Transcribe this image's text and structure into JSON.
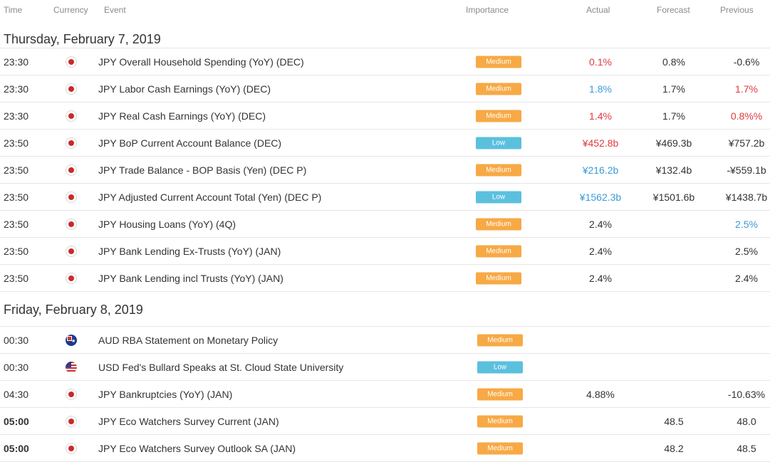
{
  "columns": {
    "time": "Time",
    "currency": "Currency",
    "event": "Event",
    "importance": "Importance",
    "actual": "Actual",
    "forecast": "Forecast",
    "previous": "Previous"
  },
  "colors": {
    "medium": "#f7a945",
    "low": "#5bc0de",
    "red_value": "#e0393e",
    "blue_value": "#3a9ad9"
  },
  "days": [
    {
      "title": "Thursday, February 7, 2019",
      "events": [
        {
          "time": "23:30",
          "flag": "japan-flag-icon",
          "event": "JPY Overall Household Spending (YoY) (DEC)",
          "importance": "Medium",
          "actual": "0.1%",
          "actual_color": "red",
          "forecast": "0.8%",
          "previous": "-0.6%",
          "previous_color": ""
        },
        {
          "time": "23:30",
          "flag": "japan-flag-icon",
          "event": "JPY Labor Cash Earnings (YoY) (DEC)",
          "importance": "Medium",
          "actual": "1.8%",
          "actual_color": "blue",
          "forecast": "1.7%",
          "previous": "1.7%",
          "previous_color": "red"
        },
        {
          "time": "23:30",
          "flag": "japan-flag-icon",
          "event": "JPY Real Cash Earnings (YoY) (DEC)",
          "importance": "Medium",
          "actual": "1.4%",
          "actual_color": "red",
          "forecast": "1.7%",
          "previous": "0.8%%",
          "previous_color": "red"
        },
        {
          "time": "23:50",
          "flag": "japan-flag-icon",
          "event": "JPY BoP Current Account Balance (DEC)",
          "importance": "Low",
          "actual": "¥452.8b",
          "actual_color": "red",
          "forecast": "¥469.3b",
          "previous": "¥757.2b",
          "previous_color": ""
        },
        {
          "time": "23:50",
          "flag": "japan-flag-icon",
          "event": "JPY Trade Balance - BOP Basis (Yen) (DEC P)",
          "importance": "Medium",
          "actual": "¥216.2b",
          "actual_color": "blue",
          "forecast": "¥132.4b",
          "previous": "-¥559.1b",
          "previous_color": ""
        },
        {
          "time": "23:50",
          "flag": "japan-flag-icon",
          "event": "JPY Adjusted Current Account Total (Yen) (DEC P)",
          "importance": "Low",
          "actual": "¥1562.3b",
          "actual_color": "blue",
          "forecast": "¥1501.6b",
          "previous": "¥1438.7b",
          "previous_color": ""
        },
        {
          "time": "23:50",
          "flag": "japan-flag-icon",
          "event": "JPY Housing Loans (YoY) (4Q)",
          "importance": "Medium",
          "actual": "2.4%",
          "actual_color": "",
          "forecast": "",
          "previous": "2.5%",
          "previous_color": "blue"
        },
        {
          "time": "23:50",
          "flag": "japan-flag-icon",
          "event": "JPY Bank Lending Ex-Trusts (YoY) (JAN)",
          "importance": "Medium",
          "actual": "2.4%",
          "actual_color": "",
          "forecast": "",
          "previous": "2.5%",
          "previous_color": ""
        },
        {
          "time": "23:50",
          "flag": "japan-flag-icon",
          "event": "JPY Bank Lending incl Trusts (YoY) (JAN)",
          "importance": "Medium",
          "actual": "2.4%",
          "actual_color": "",
          "forecast": "",
          "previous": "2.4%",
          "previous_color": ""
        }
      ]
    },
    {
      "title": "Friday, February 8, 2019",
      "events": [
        {
          "time": "00:30",
          "flag": "australia-flag-icon",
          "event": "AUD RBA Statement on Monetary Policy",
          "importance": "Medium",
          "actual": "",
          "actual_color": "",
          "forecast": "",
          "previous": "",
          "previous_color": ""
        },
        {
          "time": "00:30",
          "flag": "usa-flag-icon",
          "event": "USD Fed's Bullard Speaks at St. Cloud State University",
          "importance": "Low",
          "actual": "",
          "actual_color": "",
          "forecast": "",
          "previous": "",
          "previous_color": ""
        },
        {
          "time": "04:30",
          "flag": "japan-flag-icon",
          "event": "JPY Bankruptcies (YoY) (JAN)",
          "importance": "Medium",
          "actual": "4.88%",
          "actual_color": "",
          "forecast": "",
          "previous": "-10.63%",
          "previous_color": ""
        },
        {
          "time": "05:00",
          "time_bold": true,
          "flag": "japan-flag-icon",
          "event": "JPY Eco Watchers Survey Current (JAN)",
          "importance": "Medium",
          "actual": "",
          "actual_color": "",
          "forecast": "48.5",
          "previous": "48.0",
          "previous_color": ""
        },
        {
          "time": "05:00",
          "time_bold": true,
          "flag": "japan-flag-icon",
          "event": "JPY Eco Watchers Survey Outlook SA (JAN)",
          "importance": "Medium",
          "actual": "",
          "actual_color": "",
          "forecast": "48.2",
          "previous": "48.5",
          "previous_color": ""
        }
      ]
    }
  ]
}
